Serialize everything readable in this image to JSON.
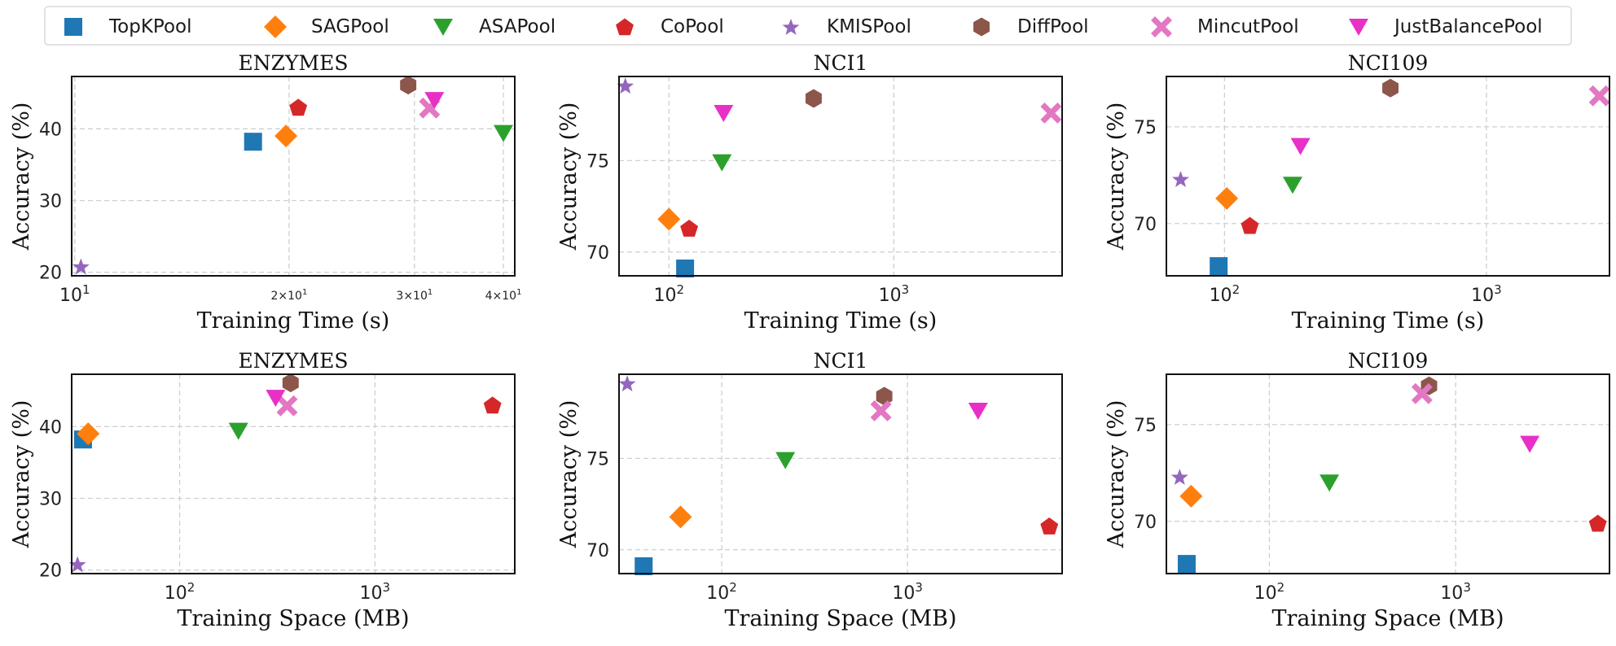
{
  "methods": [
    {
      "name": "TopKPool",
      "color": "#1f77b4",
      "marker": "square-icon"
    },
    {
      "name": "SAGPool",
      "color": "#ff7f0e",
      "marker": "diamond-icon"
    },
    {
      "name": "ASAPool",
      "color": "#2ca02c",
      "marker": "triangle-down-icon"
    },
    {
      "name": "CoPool",
      "color": "#d62728",
      "marker": "pentagon-icon"
    },
    {
      "name": "KMISPool",
      "color": "#9467bd",
      "marker": "star-icon"
    },
    {
      "name": "DiffPool",
      "color": "#8c564b",
      "marker": "hexagon-icon"
    },
    {
      "name": "MincutPool",
      "color": "#e377c2",
      "marker": "x-icon"
    },
    {
      "name": "JustBalancePool",
      "color": "#e830c7",
      "marker": "triangle-down-icon"
    }
  ],
  "chart_data": [
    {
      "type": "scatter",
      "title": "ENZYMES",
      "xlabel": "Training Time (s)",
      "ylabel": "Accuracy (%)",
      "xscale": "log",
      "xlim": [
        9.9,
        41.5
      ],
      "ylim": [
        19.5,
        47.3
      ],
      "xticks": [
        {
          "v": 10,
          "label": "10",
          "exp": "1",
          "style": "major"
        },
        {
          "v": 20,
          "label": "2×10",
          "exp": "1",
          "style": "minor"
        },
        {
          "v": 30,
          "label": "3×10",
          "exp": "1",
          "style": "minor"
        },
        {
          "v": 40,
          "label": "4×10",
          "exp": "1",
          "style": "minor"
        }
      ],
      "yticks": [
        {
          "v": 20,
          "label": "20"
        },
        {
          "v": 30,
          "label": "30"
        },
        {
          "v": 40,
          "label": "40"
        }
      ],
      "points": [
        {
          "method": "TopKPool",
          "x": 17.8,
          "y": 38.2
        },
        {
          "method": "SAGPool",
          "x": 19.8,
          "y": 39.0
        },
        {
          "method": "ASAPool",
          "x": 40.0,
          "y": 39.4
        },
        {
          "method": "CoPool",
          "x": 20.6,
          "y": 43.0
        },
        {
          "method": "KMISPool",
          "x": 10.2,
          "y": 20.8
        },
        {
          "method": "DiffPool",
          "x": 29.4,
          "y": 46.1
        },
        {
          "method": "MincutPool",
          "x": 31.5,
          "y": 42.9
        },
        {
          "method": "JustBalancePool",
          "x": 32.0,
          "y": 44.0
        }
      ]
    },
    {
      "type": "scatter",
      "title": "NCI1",
      "xlabel": "Training Time (s)",
      "ylabel": "Accuracy (%)",
      "xscale": "log",
      "xlim": [
        60,
        5600
      ],
      "ylim": [
        68.7,
        79.6
      ],
      "xticks": [
        {
          "v": 100,
          "label": "10",
          "exp": "2",
          "style": "major"
        },
        {
          "v": 1000,
          "label": "10",
          "exp": "3",
          "style": "major"
        }
      ],
      "yticks": [
        {
          "v": 70,
          "label": "70"
        },
        {
          "v": 75,
          "label": "75"
        }
      ],
      "points": [
        {
          "method": "TopKPool",
          "x": 118,
          "y": 69.1
        },
        {
          "method": "SAGPool",
          "x": 100,
          "y": 71.8
        },
        {
          "method": "ASAPool",
          "x": 172,
          "y": 74.9
        },
        {
          "method": "CoPool",
          "x": 123,
          "y": 71.3
        },
        {
          "method": "KMISPool",
          "x": 64,
          "y": 79.1
        },
        {
          "method": "DiffPool",
          "x": 440,
          "y": 78.4
        },
        {
          "method": "MincutPool",
          "x": 5000,
          "y": 77.6
        },
        {
          "method": "JustBalancePool",
          "x": 175,
          "y": 77.6
        }
      ]
    },
    {
      "type": "scatter",
      "title": "NCI109",
      "xlabel": "Training Time (s)",
      "ylabel": "Accuracy (%)",
      "xscale": "log",
      "xlim": [
        60,
        2950
      ],
      "ylim": [
        67.3,
        77.6
      ],
      "xticks": [
        {
          "v": 100,
          "label": "10",
          "exp": "2",
          "style": "major"
        },
        {
          "v": 1000,
          "label": "10",
          "exp": "3",
          "style": "major"
        }
      ],
      "yticks": [
        {
          "v": 70,
          "label": "70"
        },
        {
          "v": 75,
          "label": "75"
        }
      ],
      "points": [
        {
          "method": "TopKPool",
          "x": 95,
          "y": 67.8
        },
        {
          "method": "SAGPool",
          "x": 102,
          "y": 71.3
        },
        {
          "method": "ASAPool",
          "x": 182,
          "y": 72.0
        },
        {
          "method": "CoPool",
          "x": 125,
          "y": 69.9
        },
        {
          "method": "KMISPool",
          "x": 68,
          "y": 72.3
        },
        {
          "method": "DiffPool",
          "x": 430,
          "y": 77.0
        },
        {
          "method": "MincutPool",
          "x": 2700,
          "y": 76.6
        },
        {
          "method": "JustBalancePool",
          "x": 195,
          "y": 74.0
        }
      ]
    },
    {
      "type": "scatter",
      "title": "ENZYMES",
      "xlabel": "Training Space (MB)",
      "ylabel": "Accuracy (%)",
      "xscale": "log",
      "xlim": [
        28,
        5200
      ],
      "ylim": [
        19.5,
        47.3
      ],
      "xticks": [
        {
          "v": 100,
          "label": "10",
          "exp": "2",
          "style": "major"
        },
        {
          "v": 1000,
          "label": "10",
          "exp": "3",
          "style": "major"
        }
      ],
      "yticks": [
        {
          "v": 20,
          "label": "20"
        },
        {
          "v": 30,
          "label": "30"
        },
        {
          "v": 40,
          "label": "40"
        }
      ],
      "points": [
        {
          "method": "TopKPool",
          "x": 32,
          "y": 38.2
        },
        {
          "method": "SAGPool",
          "x": 34,
          "y": 39.0
        },
        {
          "method": "ASAPool",
          "x": 200,
          "y": 39.4
        },
        {
          "method": "CoPool",
          "x": 4000,
          "y": 43.0
        },
        {
          "method": "KMISPool",
          "x": 30,
          "y": 20.8
        },
        {
          "method": "DiffPool",
          "x": 370,
          "y": 46.1
        },
        {
          "method": "MincutPool",
          "x": 355,
          "y": 42.9
        },
        {
          "method": "JustBalancePool",
          "x": 310,
          "y": 44.0
        }
      ]
    },
    {
      "type": "scatter",
      "title": "NCI1",
      "xlabel": "Training Space (MB)",
      "ylabel": "Accuracy (%)",
      "xscale": "log",
      "xlim": [
        28,
        6800
      ],
      "ylim": [
        68.7,
        79.6
      ],
      "xticks": [
        {
          "v": 100,
          "label": "10",
          "exp": "2",
          "style": "major"
        },
        {
          "v": 1000,
          "label": "10",
          "exp": "3",
          "style": "major"
        }
      ],
      "yticks": [
        {
          "v": 70,
          "label": "70"
        },
        {
          "v": 75,
          "label": "75"
        }
      ],
      "points": [
        {
          "method": "TopKPool",
          "x": 38,
          "y": 69.1
        },
        {
          "method": "SAGPool",
          "x": 60,
          "y": 71.8
        },
        {
          "method": "ASAPool",
          "x": 220,
          "y": 74.9
        },
        {
          "method": "CoPool",
          "x": 5800,
          "y": 71.3
        },
        {
          "method": "KMISPool",
          "x": 31,
          "y": 79.1
        },
        {
          "method": "DiffPool",
          "x": 750,
          "y": 78.4
        },
        {
          "method": "MincutPool",
          "x": 720,
          "y": 77.6
        },
        {
          "method": "JustBalancePool",
          "x": 2400,
          "y": 77.6
        }
      ]
    },
    {
      "type": "scatter",
      "title": "NCI109",
      "xlabel": "Training Space (MB)",
      "ylabel": "Accuracy (%)",
      "xscale": "log",
      "xlim": [
        28,
        6700
      ],
      "ylim": [
        67.3,
        77.6
      ],
      "xticks": [
        {
          "v": 100,
          "label": "10",
          "exp": "2",
          "style": "major"
        },
        {
          "v": 1000,
          "label": "10",
          "exp": "3",
          "style": "major"
        }
      ],
      "yticks": [
        {
          "v": 70,
          "label": "70"
        },
        {
          "v": 75,
          "label": "75"
        }
      ],
      "points": [
        {
          "method": "TopKPool",
          "x": 36,
          "y": 67.8
        },
        {
          "method": "SAGPool",
          "x": 38,
          "y": 71.3
        },
        {
          "method": "ASAPool",
          "x": 210,
          "y": 72.0
        },
        {
          "method": "CoPool",
          "x": 5800,
          "y": 69.9
        },
        {
          "method": "KMISPool",
          "x": 33,
          "y": 72.3
        },
        {
          "method": "DiffPool",
          "x": 720,
          "y": 77.0
        },
        {
          "method": "MincutPool",
          "x": 660,
          "y": 76.6
        },
        {
          "method": "JustBalancePool",
          "x": 2500,
          "y": 74.0
        }
      ]
    }
  ]
}
